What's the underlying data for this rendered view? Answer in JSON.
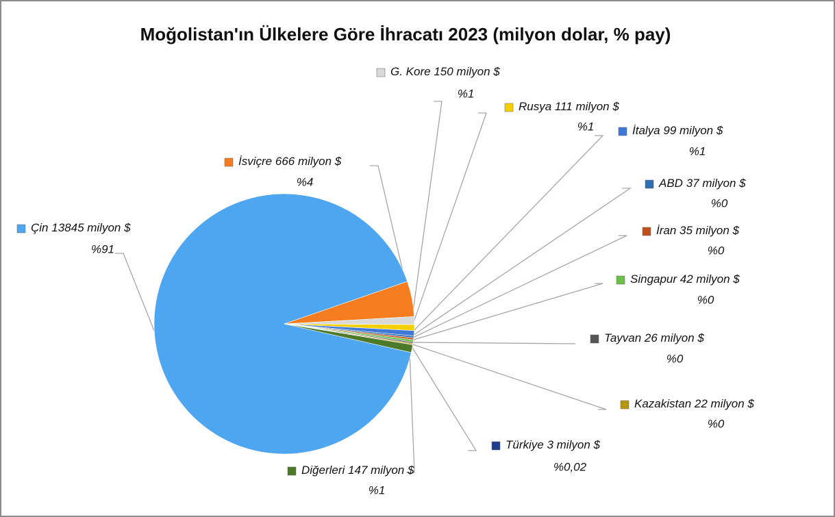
{
  "chart_data": {
    "type": "pie",
    "title": "Moğolistan'ın Ülkelere Göre İhracatı 2023 (milyon dolar, % pay)",
    "categories": [
      "Çin",
      "İsviçre",
      "G. Kore",
      "Rusya",
      "İtalya",
      "ABD",
      "İran",
      "Singapur",
      "Tayvan",
      "Kazakistan",
      "Türkiye",
      "Diğerleri"
    ],
    "values": [
      13845,
      666,
      150,
      111,
      99,
      37,
      35,
      42,
      26,
      22,
      3,
      147
    ],
    "value_labels": [
      "13845 milyon $",
      "666 milyon $",
      "150 milyon $",
      "111 milyon $",
      "99 milyon $",
      "37 milyon $",
      "35 milyon $",
      "42 milyon $",
      "26 milyon $",
      "22 milyon $",
      "3 milyon $",
      "147 milyon $"
    ],
    "share_labels": [
      "%91",
      "%4",
      "%1",
      "%1",
      "%1",
      "%0",
      "%0",
      "%0",
      "%0",
      "%0",
      "%0,02",
      "%1"
    ],
    "colors": [
      "#4ea5f0",
      "#f57d1f",
      "#d9d9d9",
      "#f5d000",
      "#3f78d8",
      "#2f6fb0",
      "#c0501b",
      "#6cc04a",
      "#555555",
      "#b8960c",
      "#1f3f8a",
      "#4d7a2a"
    ]
  }
}
